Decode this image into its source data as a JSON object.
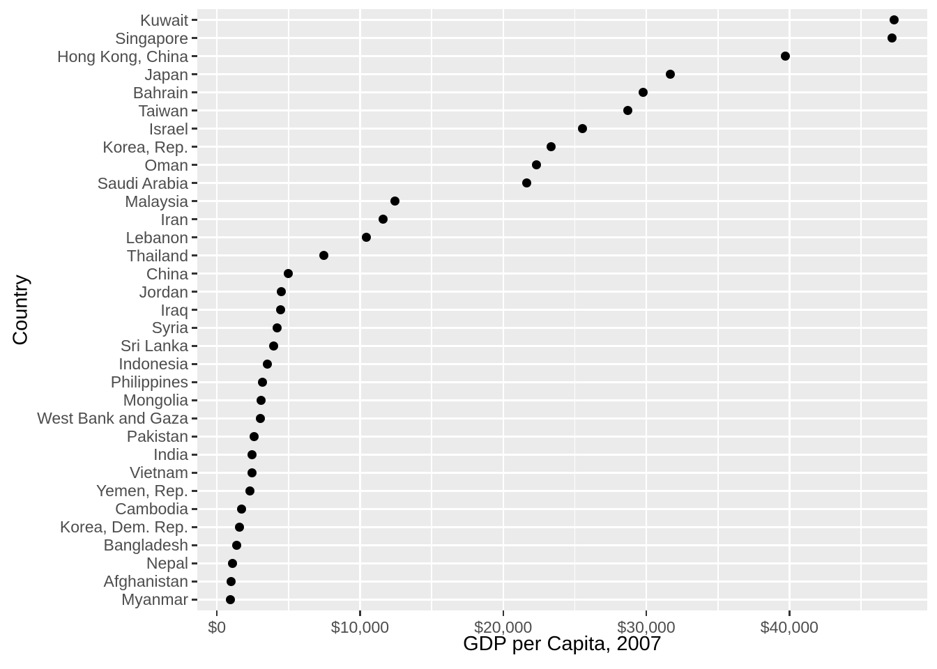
{
  "chart_data": {
    "type": "scatter",
    "variant": "cleveland-dot-plot",
    "title": "",
    "xlabel": "GDP per Capita, 2007",
    "ylabel": "Country",
    "categories": [
      "Kuwait",
      "Singapore",
      "Hong Kong, China",
      "Japan",
      "Bahrain",
      "Taiwan",
      "Israel",
      "Korea, Rep.",
      "Oman",
      "Saudi Arabia",
      "Malaysia",
      "Iran",
      "Lebanon",
      "Thailand",
      "China",
      "Jordan",
      "Iraq",
      "Syria",
      "Sri Lanka",
      "Indonesia",
      "Philippines",
      "Mongolia",
      "West Bank and Gaza",
      "Pakistan",
      "India",
      "Vietnam",
      "Yemen, Rep.",
      "Cambodia",
      "Korea, Dem. Rep.",
      "Bangladesh",
      "Nepal",
      "Afghanistan",
      "Myanmar"
    ],
    "values": [
      47306.99,
      47143.18,
      39724.98,
      31656.07,
      29796.05,
      28718.28,
      25523.28,
      23348.14,
      22316.19,
      21654.83,
      12451.66,
      11605.71,
      10461.06,
      7458.4,
      4959.11,
      4519.46,
      4471.06,
      4184.55,
      3970.1,
      3540.65,
      3190.48,
      3095.77,
      3025.35,
      2605.95,
      2452.21,
      2441.58,
      2280.77,
      1713.78,
      1593.06,
      1391.25,
      1091.36,
      974.58,
      944.0
    ],
    "x_major_ticks": [
      0,
      10000,
      20000,
      30000,
      40000
    ],
    "x_tick_labels": [
      "$0",
      "$10,000",
      "$20,000",
      "$30,000",
      "$40,000"
    ],
    "x_minor_ticks": [
      5000,
      15000,
      25000,
      35000,
      45000
    ],
    "xlim": [
      -1374,
      49626
    ],
    "grid": true,
    "legend": false,
    "colors": {
      "page_bg": "#FFFFFF",
      "panel_bg": "#EBEBEB",
      "grid": "#FFFFFF",
      "point": "#000000",
      "axis_text": "#4D4D4D",
      "tick_mark": "#333333",
      "axis_title": "#000000"
    }
  }
}
